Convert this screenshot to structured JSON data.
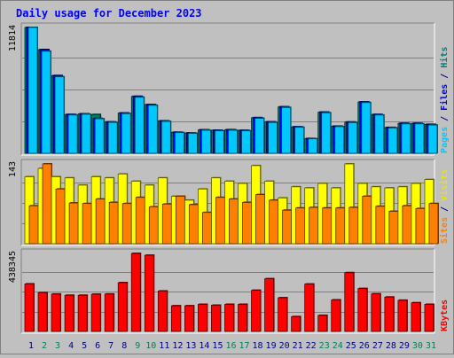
{
  "chart_data": {
    "type": "bar",
    "title": "Daily usage for December 2023",
    "categories": [
      "1",
      "2",
      "3",
      "4",
      "5",
      "6",
      "7",
      "8",
      "9",
      "10",
      "11",
      "12",
      "13",
      "14",
      "15",
      "16",
      "17",
      "18",
      "19",
      "20",
      "21",
      "22",
      "23",
      "24",
      "25",
      "26",
      "27",
      "28",
      "29",
      "30",
      "31"
    ],
    "weekend_days": [
      "2",
      "3",
      "9",
      "10",
      "16",
      "17",
      "23",
      "24",
      "30",
      "31"
    ],
    "panels": [
      {
        "id": "hits_files",
        "max_label": "11814",
        "ymax": 11814,
        "side_labels": [
          {
            "text": "Pages",
            "color": "#00c8ff"
          },
          {
            "text": " / ",
            "color": "#000080"
          },
          {
            "text": "Files",
            "color": "#0000ff"
          },
          {
            "text": " / ",
            "color": "#000080"
          },
          {
            "text": "Hits",
            "color": "#008080"
          }
        ],
        "series": [
          {
            "name": "Hits",
            "color": "#00805c",
            "values": [
              11814,
              9730,
              7290,
              3640,
              3700,
              3640,
              2940,
              3780,
              5340,
              4570,
              3040,
              1970,
              1900,
              2200,
              2160,
              2210,
              2150,
              3340,
              2950,
              4360,
              2480,
              1380,
              3860,
              2540,
              2930,
              4820,
              3640,
              2420,
              2810,
              2810,
              2710
            ]
          },
          {
            "name": "Files",
            "color": "#0000ff",
            "values": [
              11814,
              9730,
              7290,
              3640,
              3700,
              3270,
              2940,
              3780,
              5340,
              4570,
              3040,
              1970,
              1900,
              2200,
              2160,
              2210,
              2150,
              3340,
              2950,
              4360,
              2480,
              1380,
              3860,
              2540,
              2930,
              4820,
              3640,
              2420,
              2810,
              2810,
              2710
            ]
          },
          {
            "name": "Pages",
            "color": "#00c8ff",
            "values": [
              11814,
              9580,
              7180,
              3590,
              3660,
              3240,
              2900,
              3720,
              5260,
              4500,
              2990,
              1940,
              1870,
              2160,
              2110,
              2160,
              2110,
              3280,
              2890,
              4300,
              2440,
              1360,
              3800,
              2500,
              2880,
              4760,
              3590,
              2380,
              2760,
              2760,
              2650
            ]
          }
        ]
      },
      {
        "id": "visits_sites",
        "max_label": "143",
        "ymax": 143,
        "side_labels": [
          {
            "text": "Sites",
            "color": "#ff8000"
          },
          {
            "text": " / ",
            "color": "#000080"
          },
          {
            "text": "Visits",
            "color": "#e6e600"
          }
        ],
        "series": [
          {
            "name": "Visits",
            "color": "#ffff00",
            "values": [
              120,
              135,
              120,
              118,
              105,
              120,
              118,
              125,
              112,
              105,
              118,
              85,
              78,
              98,
              118,
              112,
              108,
              140,
              112,
              82,
              102,
              100,
              108,
              100,
              143,
              108,
              102,
              100,
              102,
              108,
              115
            ]
          },
          {
            "name": "Sites",
            "color": "#ff8000",
            "values": [
              68,
              143,
              98,
              73,
              72,
              80,
              74,
              72,
              83,
              66,
              71,
              85,
              70,
              56,
              83,
              80,
              74,
              88,
              78,
              60,
              64,
              65,
              64,
              64,
              65,
              85,
              67,
              58,
              68,
              63,
              72
            ]
          }
        ]
      },
      {
        "id": "kbytes",
        "max_label": "438345",
        "ymax": 438345,
        "side_labels": [
          {
            "text": "KBytes",
            "color": "#ff0000"
          }
        ],
        "series": [
          {
            "name": "KBytes",
            "color": "#ff0000",
            "values": [
              267000,
              218000,
              210000,
              203000,
              203000,
              209000,
              210000,
              274000,
              438345,
              428000,
              227000,
              144000,
              144000,
              152000,
              147000,
              152000,
              152000,
              231000,
              296000,
              189000,
              83000,
              266000,
              90000,
              177000,
              330000,
              241000,
              211000,
              193000,
              175000,
              161000,
              152000
            ]
          }
        ]
      }
    ]
  }
}
